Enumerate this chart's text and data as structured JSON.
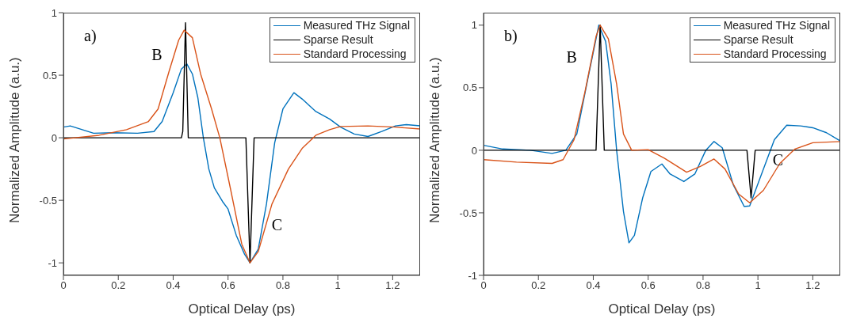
{
  "chart_data": [
    {
      "type": "line",
      "xlabel": "Optical Delay (ps)",
      "ylabel": "Normalized Amplitude (a.u.)",
      "xlim": [
        0,
        1.3
      ],
      "ylim": [
        -1.1,
        1
      ],
      "xticks": [
        0,
        0.2,
        0.4,
        0.6,
        0.8,
        1,
        1.2
      ],
      "yticks": [
        -1,
        -0.5,
        0,
        0.5,
        1
      ],
      "grid": false,
      "legend": "top right",
      "line_style": "solid",
      "annotations": [
        "a)",
        {
          "text": "B",
          "x": 0.445,
          "y": 0.92
        },
        {
          "text": "C",
          "x": 0.68,
          "y": -1
        }
      ],
      "series": [
        {
          "name": "Measured THz Signal",
          "color": "#0072bd",
          "x": [
            0,
            0.025,
            0.11,
            0.18,
            0.27,
            0.33,
            0.36,
            0.4,
            0.43,
            0.45,
            0.47,
            0.49,
            0.51,
            0.53,
            0.55,
            0.58,
            0.6,
            0.63,
            0.66,
            0.68,
            0.71,
            0.74,
            0.77,
            0.8,
            0.84,
            0.87,
            0.92,
            0.97,
            1.01,
            1.06,
            1.11,
            1.16,
            1.21,
            1.25,
            1.3
          ],
          "values": [
            0.085,
            0.095,
            0.036,
            0.04,
            0.036,
            0.05,
            0.13,
            0.36,
            0.55,
            0.59,
            0.51,
            0.32,
            0,
            -0.25,
            -0.4,
            -0.51,
            -0.57,
            -0.78,
            -0.93,
            -1,
            -0.89,
            -0.53,
            -0.04,
            0.23,
            0.36,
            0.31,
            0.21,
            0.15,
            0.085,
            0.03,
            0.01,
            0.05,
            0.095,
            0.105,
            0.095
          ]
        },
        {
          "name": "Sparse Result",
          "color": "#000000",
          "x": [
            0,
            0.43,
            0.435,
            0.445,
            0.455,
            0.665,
            0.68,
            0.695,
            1.3
          ],
          "values": [
            0,
            0,
            0.05,
            0.92,
            0,
            0,
            -1,
            0,
            0
          ]
        },
        {
          "name": "Standard Processing",
          "color": "#d95319",
          "x": [
            0,
            0.13,
            0.23,
            0.31,
            0.345,
            0.385,
            0.42,
            0.44,
            0.47,
            0.5,
            0.54,
            0.57,
            0.61,
            0.65,
            0.68,
            0.71,
            0.76,
            0.82,
            0.87,
            0.92,
            0.97,
            1.01,
            1.11,
            1.21,
            1.3
          ],
          "values": [
            -0.01,
            0.02,
            0.065,
            0.13,
            0.23,
            0.53,
            0.78,
            0.86,
            0.8,
            0.51,
            0.23,
            0,
            -0.42,
            -0.85,
            -1,
            -0.91,
            -0.53,
            -0.25,
            -0.085,
            0.02,
            0.065,
            0.09,
            0.095,
            0.085,
            0.07
          ]
        }
      ]
    },
    {
      "type": "line",
      "xlabel": "Optical Delay (ps)",
      "ylabel": "Normalized Amplitude (a.u.)",
      "xlim": [
        0,
        1.3
      ],
      "ylim": [
        -1,
        1.1
      ],
      "xticks": [
        0,
        0.2,
        0.4,
        0.6,
        0.8,
        1,
        1.2
      ],
      "yticks": [
        -1,
        -0.5,
        0,
        0.5,
        1
      ],
      "grid": false,
      "legend": "top right",
      "line_style": "solid",
      "annotations": [
        "b)",
        {
          "text": "B",
          "x": 0.425,
          "y": 1
        },
        {
          "text": "C",
          "x": 0.975,
          "y": -0.38
        }
      ],
      "series": [
        {
          "name": "Measured THz Signal",
          "color": "#0072bd",
          "x": [
            0,
            0.07,
            0.17,
            0.25,
            0.3,
            0.34,
            0.38,
            0.41,
            0.42,
            0.445,
            0.465,
            0.485,
            0.51,
            0.53,
            0.55,
            0.58,
            0.61,
            0.65,
            0.68,
            0.73,
            0.77,
            0.81,
            0.84,
            0.87,
            0.91,
            0.95,
            0.97,
            1.01,
            1.06,
            1.105,
            1.155,
            1.2,
            1.25,
            1.3
          ],
          "values": [
            0.04,
            0.01,
            0,
            -0.025,
            0,
            0.13,
            0.57,
            0.89,
            1,
            0.87,
            0.53,
            0,
            -0.49,
            -0.74,
            -0.68,
            -0.38,
            -0.17,
            -0.11,
            -0.19,
            -0.25,
            -0.19,
            0,
            0.07,
            0.02,
            -0.275,
            -0.45,
            -0.445,
            -0.21,
            0.085,
            0.2,
            0.195,
            0.18,
            0.14,
            0.075
          ]
        },
        {
          "name": "Sparse Result",
          "color": "#000000",
          "x": [
            0,
            0.41,
            0.425,
            0.44,
            0.96,
            0.975,
            0.99,
            1.3
          ],
          "values": [
            0,
            0,
            1,
            0,
            0,
            -0.38,
            0,
            0
          ]
        },
        {
          "name": "Standard Processing",
          "color": "#d95319",
          "x": [
            0,
            0.12,
            0.25,
            0.29,
            0.33,
            0.37,
            0.41,
            0.425,
            0.455,
            0.485,
            0.51,
            0.54,
            0.6,
            0.66,
            0.74,
            0.79,
            0.84,
            0.88,
            0.93,
            0.97,
            1.02,
            1.08,
            1.135,
            1.2,
            1.3
          ],
          "values": [
            -0.075,
            -0.095,
            -0.105,
            -0.075,
            0.085,
            0.47,
            0.91,
            1,
            0.89,
            0.53,
            0.13,
            0,
            0.005,
            -0.065,
            -0.175,
            -0.13,
            -0.07,
            -0.15,
            -0.35,
            -0.42,
            -0.32,
            -0.105,
            0.01,
            0.06,
            0.07
          ]
        }
      ]
    }
  ]
}
